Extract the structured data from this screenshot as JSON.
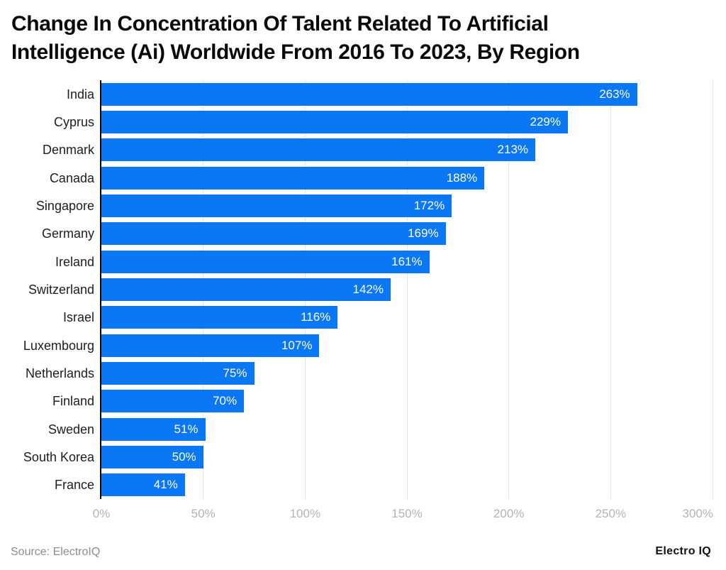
{
  "title_lines": [
    "Change In Concentration Of Talent Related To Artificial",
    "Intelligence (Ai) Worldwide From 2016 To 2023, By Region"
  ],
  "chart_data": {
    "type": "bar",
    "orientation": "horizontal",
    "title": "Change In Concentration Of Talent Related To Artificial Intelligence (Ai) Worldwide From 2016 To 2023, By Region",
    "categories": [
      "India",
      "Cyprus",
      "Denmark",
      "Canada",
      "Singapore",
      "Germany",
      "Ireland",
      "Switzerland",
      "Israel",
      "Luxembourg",
      "Netherlands",
      "Finland",
      "Sweden",
      "South Korea",
      "France"
    ],
    "values": [
      263,
      229,
      213,
      188,
      172,
      169,
      161,
      142,
      116,
      107,
      75,
      70,
      51,
      50,
      41
    ],
    "value_labels": [
      "263%",
      "229%",
      "213%",
      "188%",
      "172%",
      "169%",
      "161%",
      "142%",
      "116%",
      "107%",
      "75%",
      "70%",
      "51%",
      "50%",
      "41%"
    ],
    "unit": "%",
    "xlabel": "",
    "ylabel": "",
    "xlim": [
      0,
      300
    ],
    "x_ticks": [
      {
        "value": 0,
        "label": "0%"
      },
      {
        "value": 50,
        "label": "50%"
      },
      {
        "value": 100,
        "label": "100%"
      },
      {
        "value": 150,
        "label": "150%"
      },
      {
        "value": 200,
        "label": "200%"
      },
      {
        "value": 250,
        "label": "250%"
      },
      {
        "value": 300,
        "label": "300%"
      }
    ],
    "grid": "vertical",
    "legend": "none",
    "colors": {
      "bar": "#0a77f4",
      "value_label": "#ffffff",
      "axis_line": "#000000",
      "gridline": "#e2e2e2",
      "tick_label": "#b3b3b3",
      "category_label": "#1d1d1d",
      "title": "#0a0a0a"
    }
  },
  "footer": {
    "source": "Source: ElectroIQ",
    "logo": "Electro IQ"
  }
}
